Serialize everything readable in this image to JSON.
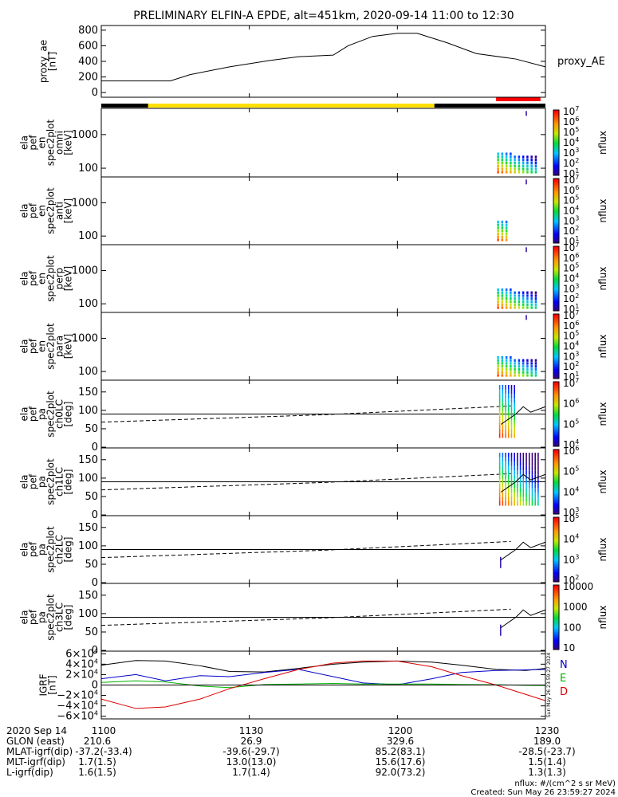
{
  "title": "PRELIMINARY ELFIN-A EPDE, alt=451km, 2020-09-14 11:00 to 12:30",
  "colors": {
    "yellow_bar": "#ffe000",
    "black_bar": "#000000",
    "red_bar": "#ff0000",
    "igrf_total": "#000000",
    "igrf_n": "#0000c8",
    "igrf_e": "#00b400",
    "igrf_d": "#dc0000"
  },
  "chart_data": {
    "type": "line",
    "x_range_min": [
      0,
      90
    ],
    "x_tick_labels": [
      "1100",
      "1130",
      "1200",
      "1230"
    ],
    "x_tick_positions_min": [
      0,
      30,
      60,
      90
    ],
    "status_bar": [
      {
        "color": "black",
        "start_min": 0,
        "end_min": 9.5
      },
      {
        "color": "yellow",
        "start_min": 9.5,
        "end_min": 67.5
      },
      {
        "color": "black",
        "start_min": 67.5,
        "end_min": 90
      }
    ],
    "science_zone_marker": {
      "color": "red",
      "start_min": 80,
      "end_min": 89
    },
    "panels": [
      {
        "name": "proxy_ae",
        "ylabel": [
          "proxy_ae",
          "[nT]"
        ],
        "ylim": [
          -60,
          860
        ],
        "yticks": [
          0,
          200,
          400,
          600,
          800
        ],
        "ytick_labels": [
          "0",
          "200",
          "400",
          "600",
          "800"
        ],
        "series": [
          {
            "name": "proxy_AE",
            "x": [
              0,
              14,
              18,
              26,
              34,
              40,
              47,
              50,
              55,
              60,
              64,
              70,
              76,
              84,
              90
            ],
            "y": [
              150,
              150,
              230,
              330,
              410,
              460,
              480,
              600,
              720,
              760,
              760,
              640,
              500,
              430,
              330
            ]
          }
        ]
      },
      {
        "name": "omni",
        "ylabel": [
          "ela",
          "pef",
          "en",
          "spec2plot",
          "omni",
          "[keV]"
        ],
        "log": true,
        "ylim": [
          55,
          6000
        ],
        "yticks": [
          100,
          1000
        ],
        "ytick_labels": [
          "100",
          "1000"
        ],
        "colorbar": {
          "label": "nflux",
          "ticks": [
            "10",
            "10",
            "10",
            "10",
            "10",
            "10",
            "10"
          ],
          "exps": [
            "1",
            "2",
            "3",
            "4",
            "5",
            "6",
            "7"
          ]
        }
      },
      {
        "name": "anti",
        "ylabel": [
          "ela",
          "pef",
          "en",
          "spec2plot",
          "anti",
          "[keV]"
        ],
        "log": true,
        "ylim": [
          55,
          6000
        ],
        "yticks": [
          100,
          1000
        ],
        "ytick_labels": [
          "100",
          "1000"
        ],
        "colorbar": {
          "label": "nflux",
          "ticks": [
            "10",
            "10",
            "10",
            "10",
            "10",
            "10",
            "10"
          ],
          "exps": [
            "1",
            "2",
            "3",
            "4",
            "5",
            "6",
            "7"
          ]
        }
      },
      {
        "name": "perp",
        "ylabel": [
          "ela",
          "pef",
          "en",
          "spec2plot",
          "perp",
          "[keV]"
        ],
        "log": true,
        "ylim": [
          55,
          6000
        ],
        "yticks": [
          100,
          1000
        ],
        "ytick_labels": [
          "100",
          "1000"
        ],
        "colorbar": {
          "label": "nflux",
          "ticks": [
            "10",
            "10",
            "10",
            "10",
            "10",
            "10",
            "10"
          ],
          "exps": [
            "1",
            "2",
            "3",
            "4",
            "5",
            "6",
            "7"
          ]
        }
      },
      {
        "name": "para",
        "ylabel": [
          "ela",
          "pef",
          "en",
          "spec2plot",
          "para",
          "[keV]"
        ],
        "log": true,
        "ylim": [
          55,
          6000
        ],
        "yticks": [
          100,
          1000
        ],
        "ytick_labels": [
          "100",
          "1000"
        ],
        "colorbar": {
          "label": "nflux",
          "ticks": [
            "10",
            "10",
            "10",
            "10",
            "10",
            "10",
            "10"
          ],
          "exps": [
            "1",
            "2",
            "3",
            "4",
            "5",
            "6",
            "7"
          ]
        }
      },
      {
        "name": "ch0LC",
        "ylabel": [
          "ela",
          "pef",
          "pa",
          "spec2plot",
          "ch0LC",
          "[deg]"
        ],
        "ylim": [
          -2,
          182
        ],
        "yticks": [
          0,
          50,
          100,
          150
        ],
        "ytick_labels": [
          "0",
          "50",
          "100",
          "150"
        ],
        "colorbar": {
          "label": "nflux",
          "ticks": [
            "10",
            "10",
            "10",
            "10"
          ],
          "exps": [
            "4",
            "5",
            "6",
            "7"
          ]
        }
      },
      {
        "name": "ch1LC",
        "ylabel": [
          "ela",
          "pef",
          "pa",
          "spec2plot",
          "ch1LC",
          "[deg]"
        ],
        "ylim": [
          -2,
          182
        ],
        "yticks": [
          0,
          50,
          100,
          150
        ],
        "ytick_labels": [
          "0",
          "50",
          "100",
          "150"
        ],
        "colorbar": {
          "label": "nflux",
          "ticks": [
            "10",
            "10",
            "10",
            "10"
          ],
          "exps": [
            "3",
            "4",
            "5",
            "6"
          ]
        }
      },
      {
        "name": "ch2LC",
        "ylabel": [
          "ela",
          "pef",
          "pa",
          "spec2plot",
          "ch2LC",
          "[deg]"
        ],
        "ylim": [
          -2,
          182
        ],
        "yticks": [
          0,
          50,
          100,
          150
        ],
        "ytick_labels": [
          "0",
          "50",
          "100",
          "150"
        ],
        "colorbar": {
          "label": "nflux",
          "ticks": [
            "10",
            "10",
            "10",
            "10"
          ],
          "exps": [
            "2",
            "3",
            "4",
            "5"
          ]
        }
      },
      {
        "name": "ch3LC",
        "ylabel": [
          "ela",
          "pef",
          "pa",
          "spec2plot",
          "ch3LC",
          "[deg]"
        ],
        "ylim": [
          -2,
          182
        ],
        "yticks": [
          0,
          50,
          100,
          150
        ],
        "ytick_labels": [
          "0",
          "50",
          "100",
          "150"
        ],
        "colorbar": {
          "label": "nflux",
          "ticks": [
            "10",
            "100",
            "1000",
            "10000"
          ],
          "exps": [
            "",
            "",
            "",
            ""
          ]
        }
      },
      {
        "name": "IGRF",
        "ylabel": [
          "IGRF",
          "[nT]"
        ],
        "ylim": [
          -65000,
          65000
        ],
        "yticks": [
          -60000,
          -40000,
          -20000,
          0,
          20000,
          40000,
          60000
        ],
        "ytick_labels": [
          "−6×10",
          "−4×10",
          "−2×10",
          "0",
          "2×10",
          "4×10",
          "6×10"
        ],
        "ytick_exps": [
          "4",
          "4",
          "4",
          "",
          "4",
          "4",
          "4"
        ],
        "legend": [
          "N",
          "E",
          "D"
        ],
        "series": [
          {
            "name": "total",
            "x": [
              0,
              7,
              13,
              20,
              26,
              33,
              40,
              47,
              53,
              60,
              67,
              73,
              80,
              86,
              90
            ],
            "y": [
              38000,
              47000,
              46000,
              37000,
              26000,
              25000,
              32000,
              40000,
              44000,
              46000,
              44000,
              38000,
              30000,
              28000,
              32000
            ]
          },
          {
            "name": "N",
            "x": [
              0,
              7,
              13,
              20,
              26,
              33,
              40,
              47,
              53,
              60,
              67,
              73,
              80,
              86,
              90
            ],
            "y": [
              12000,
              20000,
              8000,
              18000,
              16000,
              24000,
              30000,
              16000,
              4000,
              500,
              12000,
              24000,
              28000,
              29000,
              30000
            ]
          },
          {
            "name": "E",
            "x": [
              0,
              7,
              13,
              20,
              26,
              33,
              40,
              47,
              53,
              60,
              67,
              73,
              80,
              86,
              90
            ],
            "y": [
              5000,
              8000,
              6000,
              -2000,
              -5000,
              1000,
              2000,
              3000,
              2000,
              2000,
              2000,
              1000,
              500,
              -500,
              -1000
            ]
          },
          {
            "name": "D",
            "x": [
              0,
              7,
              13,
              20,
              26,
              33,
              40,
              47,
              53,
              60,
              67,
              73,
              80,
              86,
              90
            ],
            "y": [
              -27000,
              -45000,
              -42000,
              -27000,
              -7000,
              12000,
              30000,
              42000,
              46000,
              46000,
              35000,
              18000,
              0,
              -18000,
              -30000
            ]
          }
        ],
        "side_text": "Sun May 26 23:59:27 2024"
      }
    ]
  },
  "footer": {
    "rows": [
      {
        "label": "2020 Sep 14",
        "values": [
          "1100",
          "1130",
          "1200",
          "1230"
        ]
      },
      {
        "label": "GLON (east)",
        "values": [
          "210.6",
          "26.9",
          "329.6",
          "189.0"
        ]
      },
      {
        "label": "MLAT-igrf(dip)",
        "values": "-37.2(-33.4) -39.6(-29.7) 85.2(83.1) -28.5(-23.7)"
      },
      {
        "label": "MLT-igrf(dip)",
        "values": [
          "1.7(1.5)",
          "13.0(13.0)",
          "15.6(17.6)",
          "1.5(1.4)"
        ]
      },
      {
        "label": "L-igrf(dip)",
        "values": [
          "1.6(1.5)",
          "1.7(1.4)",
          "92.0(73.2)",
          "1.3(1.3)"
        ]
      }
    ],
    "unit_note": "nflux: #/(cm^2 s sr MeV)",
    "created": "Created: Sun May 26 23:59:27 2024"
  }
}
